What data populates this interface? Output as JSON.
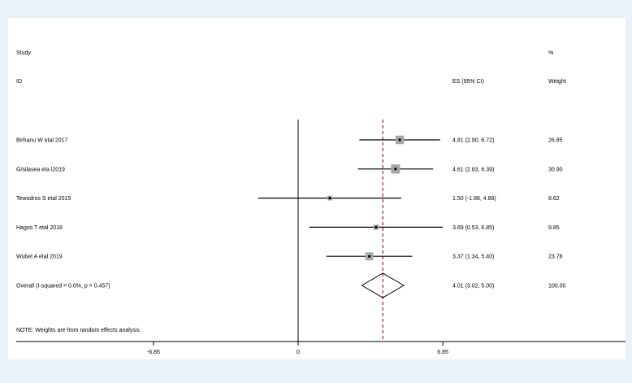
{
  "chart_data": {
    "type": "forest",
    "headers": {
      "study_line1": "Study",
      "study_line2": "ID",
      "es": "ES (95% CI)",
      "weight_line1": "%",
      "weight_line2": "Weight"
    },
    "studies": [
      {
        "label": "Birhanu W etal 2017",
        "es": 4.81,
        "lower": 2.9,
        "upper": 6.72,
        "es_text": "4.81 (2.90, 6.72)",
        "weight": "26.85"
      },
      {
        "label": "G/silasea eta l2019",
        "es": 4.61,
        "lower": 2.83,
        "upper": 6.39,
        "es_text": "4.61 (2.83, 6.39)",
        "weight": "30.90"
      },
      {
        "label": "Tewodros S etal 2015",
        "es": 1.5,
        "lower": -1.88,
        "upper": 4.88,
        "es_text": "1.50 (-1.88, 4.88)",
        "weight": "8.62"
      },
      {
        "label": "Hagos T etal 2018",
        "es": 3.69,
        "lower": 0.53,
        "upper": 6.85,
        "es_text": "3.69 (0.53, 6.85)",
        "weight": "9.85"
      },
      {
        "label": "Wubet A etal 2019",
        "es": 3.37,
        "lower": 1.34,
        "upper": 5.4,
        "es_text": "3.37 (1.34, 5.40)",
        "weight": "23.78"
      }
    ],
    "overall": {
      "label": "Overall  (I-squared = 0.0%, p = 0.457)",
      "es": 4.01,
      "lower": 3.02,
      "upper": 5.0,
      "es_text": "4.01 (3.02, 5.00)",
      "weight": "100.00"
    },
    "note": "NOTE: Weights are from random effects analysis",
    "x_ticks": [
      {
        "value": -6.85,
        "label": "-6.85"
      },
      {
        "value": 0,
        "label": "0"
      },
      {
        "value": 6.85,
        "label": "6.85"
      }
    ],
    "xlim": [
      -6.85,
      6.85
    ],
    "null_line": 0,
    "colors": {
      "background": "#e9f3f7",
      "plot_bg": "#ffffff",
      "weight_box": "#a6a6a6",
      "ci_line": "#000000",
      "overall_line": "#800000"
    }
  }
}
